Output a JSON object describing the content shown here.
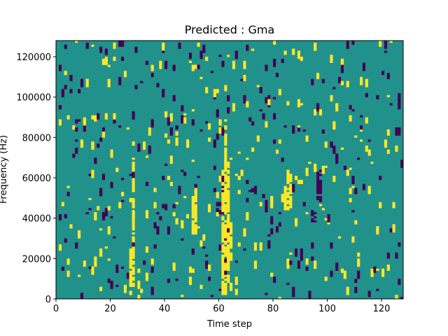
{
  "chart_data": {
    "type": "heatmap",
    "title": "Predicted : Gma",
    "xlabel": "Time step",
    "ylabel": "Frequency (Hz)",
    "xlim": [
      0,
      128
    ],
    "ylim": [
      0,
      128000
    ],
    "xticks": [
      0,
      20,
      40,
      60,
      80,
      100,
      120
    ],
    "yticks": [
      0,
      20000,
      40000,
      60000,
      80000,
      100000,
      120000
    ],
    "xtick_labels": [
      "0",
      "20",
      "40",
      "60",
      "80",
      "100",
      "120"
    ],
    "ytick_labels": [
      "0",
      "20000",
      "40000",
      "60000",
      "80000",
      "100000",
      "120000"
    ],
    "grid": false,
    "legend": "none",
    "colormap": "viridis",
    "background_value_color": "#21918c",
    "high_value_color": "#fde725",
    "low_value_color": "#440154",
    "columns": 128,
    "rows": 128,
    "notes_approximate": "Grid of 128 time steps x 128 frequency bins; predominantly mid value with sparse high and low cells"
  }
}
